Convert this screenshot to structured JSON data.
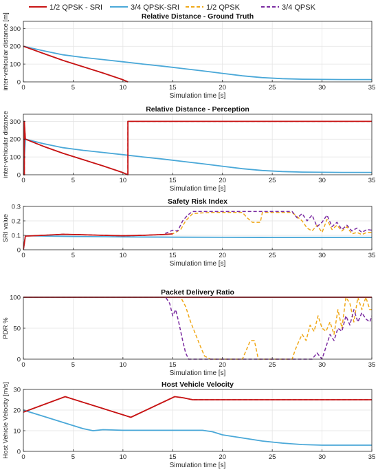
{
  "legend": [
    {
      "label": "1/2 QPSK - SRI",
      "color": "#c81414",
      "dash": "solid"
    },
    {
      "label": "3/4 QPSK-SRI",
      "color": "#4aa8d8",
      "dash": "solid"
    },
    {
      "label": "1/2 QPSK",
      "color": "#f0a818",
      "dash": "dashed"
    },
    {
      "label": "3/4 QPSK",
      "color": "#7a2aa0",
      "dash": "dashed"
    }
  ],
  "chart_data": [
    {
      "type": "line",
      "title": "Relative Distance - Ground Truth",
      "xlabel": "Simulation time [s]",
      "ylabel": "inter-vehicular distance [m]",
      "xlim": [
        0,
        35
      ],
      "ylim": [
        0,
        340
      ],
      "xticks": [
        0,
        5,
        10,
        15,
        20,
        25,
        30,
        35
      ],
      "yticks": [
        0,
        100,
        200,
        300
      ],
      "grid": true,
      "series": [
        {
          "name": "1/2 QPSK - SRI",
          "x": [
            0,
            2,
            4,
            6,
            8,
            10,
            10.5
          ],
          "y": [
            200,
            160,
            120,
            85,
            50,
            12,
            0
          ]
        },
        {
          "name": "3/4 QPSK-SRI",
          "x": [
            0,
            2,
            4,
            6,
            8,
            10,
            12,
            14,
            16,
            18,
            20,
            22,
            24,
            26,
            28,
            30,
            32,
            35
          ],
          "y": [
            200,
            175,
            152,
            137,
            125,
            113,
            100,
            88,
            75,
            62,
            48,
            34,
            24,
            18,
            15,
            14,
            13,
            13
          ]
        },
        {
          "name": "1/2 QPSK",
          "x": [
            0,
            2,
            4,
            6,
            8,
            10,
            10.5
          ],
          "y": [
            200,
            160,
            120,
            85,
            50,
            12,
            0
          ]
        },
        {
          "name": "3/4 QPSK",
          "x": [
            0,
            2,
            4,
            6,
            8,
            10,
            10.5
          ],
          "y": [
            200,
            160,
            120,
            85,
            50,
            12,
            0
          ]
        }
      ]
    },
    {
      "type": "line",
      "title": "Relative Distance - Perception",
      "xlabel": "Simulation time [s]",
      "ylabel": "inter-vehicular distance",
      "xlim": [
        0,
        35
      ],
      "ylim": [
        0,
        340
      ],
      "xticks": [
        0,
        5,
        10,
        15,
        20,
        25,
        30,
        35
      ],
      "yticks": [
        0,
        100,
        200,
        300
      ],
      "grid": true,
      "series": [
        {
          "name": "1/2 QPSK - SRI",
          "x": [
            0,
            0.1,
            0.1,
            0.2,
            2,
            4,
            6,
            8,
            10,
            10.5,
            10.5,
            35
          ],
          "y": [
            0,
            0,
            300,
            200,
            160,
            120,
            85,
            50,
            12,
            0,
            300,
            300
          ]
        },
        {
          "name": "3/4 QPSK-SRI",
          "x": [
            0,
            0.2,
            2,
            4,
            6,
            8,
            10,
            12,
            14,
            16,
            18,
            20,
            22,
            24,
            26,
            28,
            30,
            32,
            35
          ],
          "y": [
            0,
            200,
            175,
            152,
            137,
            125,
            113,
            100,
            88,
            75,
            62,
            48,
            34,
            24,
            18,
            15,
            14,
            13,
            13
          ]
        },
        {
          "name": "1/2 QPSK",
          "x": [
            0,
            0.1,
            0.1,
            0.2,
            2,
            4,
            6,
            8,
            10,
            10.5,
            10.5,
            35
          ],
          "y": [
            0,
            0,
            300,
            200,
            160,
            120,
            85,
            50,
            12,
            0,
            300,
            300
          ]
        },
        {
          "name": "3/4 QPSK",
          "x": [
            0,
            0.1,
            0.1,
            0.2,
            2,
            4,
            6,
            8,
            10,
            10.5,
            10.5,
            35
          ],
          "y": [
            0,
            0,
            300,
            200,
            160,
            120,
            85,
            50,
            12,
            0,
            300,
            300
          ]
        }
      ]
    },
    {
      "type": "line",
      "title": "Safety Risk Index",
      "xlabel": "Simulation time [s]",
      "ylabel": "SRI value",
      "xlim": [
        0,
        35
      ],
      "ylim": [
        0,
        0.3
      ],
      "xticks": [
        0,
        5,
        10,
        15,
        20,
        25,
        30,
        35
      ],
      "yticks": [
        0,
        0.1,
        0.2,
        0.3
      ],
      "grid": true,
      "series": [
        {
          "name": "1/2 QPSK - SRI",
          "x": [
            0,
            0.2,
            2,
            4,
            6,
            8,
            10,
            12,
            14,
            15
          ],
          "y": [
            0,
            0.095,
            0.1,
            0.107,
            0.104,
            0.1,
            0.097,
            0.1,
            0.105,
            0.11
          ]
        },
        {
          "name": "3/4 QPSK-SRI",
          "x": [
            0,
            0.2,
            5,
            10,
            15,
            20,
            25,
            30,
            35
          ],
          "y": [
            0,
            0.097,
            0.092,
            0.089,
            0.087,
            0.086,
            0.085,
            0.085,
            0.085
          ]
        },
        {
          "name": "1/2 QPSK",
          "x": [
            0,
            0.2,
            2,
            4,
            6,
            8,
            10,
            12,
            14,
            15,
            15.8,
            16.3,
            17,
            18,
            19,
            20,
            21,
            22,
            22.5,
            23,
            23.8,
            24,
            24.5,
            25,
            26,
            27,
            28,
            28.5,
            29,
            29.5,
            30,
            30.5,
            31,
            31.5,
            32,
            32.5,
            33,
            33.5,
            34,
            34.5,
            35
          ],
          "y": [
            0,
            0.095,
            0.1,
            0.107,
            0.104,
            0.1,
            0.097,
            0.1,
            0.105,
            0.11,
            0.14,
            0.2,
            0.25,
            0.255,
            0.258,
            0.258,
            0.258,
            0.258,
            0.22,
            0.19,
            0.19,
            0.258,
            0.258,
            0.258,
            0.258,
            0.258,
            0.2,
            0.15,
            0.13,
            0.17,
            0.12,
            0.21,
            0.14,
            0.17,
            0.13,
            0.16,
            0.11,
            0.12,
            0.105,
            0.12,
            0.12
          ]
        },
        {
          "name": "3/4 QPSK",
          "x": [
            0,
            0.2,
            2,
            4,
            6,
            8,
            10,
            12,
            14,
            14.5,
            15,
            15.5,
            16,
            16.5,
            17,
            18,
            20,
            22,
            24,
            26,
            27,
            27.5,
            28,
            28.5,
            29,
            29.5,
            30,
            30.5,
            31,
            31.5,
            32,
            32.5,
            33,
            33.5,
            34,
            34.5,
            35
          ],
          "y": [
            0,
            0.095,
            0.1,
            0.107,
            0.104,
            0.1,
            0.097,
            0.1,
            0.105,
            0.12,
            0.135,
            0.13,
            0.2,
            0.24,
            0.265,
            0.265,
            0.265,
            0.265,
            0.265,
            0.265,
            0.265,
            0.22,
            0.25,
            0.2,
            0.24,
            0.16,
            0.19,
            0.24,
            0.16,
            0.19,
            0.14,
            0.17,
            0.13,
            0.15,
            0.12,
            0.14,
            0.135
          ]
        }
      ]
    },
    {
      "type": "line",
      "title": "Packet Delivery Ratio",
      "xlabel": "Simulation time [s]",
      "ylabel": "PDR %",
      "xlim": [
        0,
        35
      ],
      "ylim": [
        0,
        100
      ],
      "xticks": [
        0,
        5,
        10,
        15,
        20,
        25,
        30,
        35
      ],
      "yticks": [
        0,
        50,
        100
      ],
      "grid": true,
      "series": [
        {
          "name": "1/2 QPSK - SRI",
          "x": [
            0,
            35
          ],
          "y": [
            100,
            100
          ]
        },
        {
          "name": "3/4 QPSK-SRI",
          "x": [
            0,
            35
          ],
          "y": [
            100,
            100
          ]
        },
        {
          "name": "1/2 QPSK",
          "x": [
            0,
            15,
            15.8,
            16.3,
            16.8,
            17.3,
            17.8,
            18.2,
            18.8,
            20,
            22,
            22.8,
            23.2,
            23.6,
            24,
            26,
            27,
            27.3,
            27.7,
            28,
            28.4,
            28.8,
            29.2,
            29.6,
            30,
            30.4,
            30.8,
            31.2,
            31.6,
            32,
            32.4,
            32.8,
            33.2,
            33.6,
            34,
            34.4,
            34.8,
            35
          ],
          "y": [
            100,
            100,
            100,
            85,
            60,
            40,
            20,
            5,
            0,
            0,
            0,
            30,
            30,
            0,
            0,
            0,
            0,
            15,
            30,
            40,
            30,
            55,
            45,
            70,
            50,
            45,
            60,
            40,
            80,
            50,
            100,
            90,
            60,
            100,
            80,
            100,
            80,
            80
          ]
        },
        {
          "name": "3/4 QPSK",
          "x": [
            0,
            14.3,
            14.7,
            15,
            15.3,
            15.6,
            16,
            16.3,
            16.6,
            17,
            20,
            24,
            26,
            28,
            29,
            29.5,
            30,
            30.4,
            30.8,
            31.2,
            31.6,
            32,
            32.4,
            32.8,
            33.2,
            33.6,
            34,
            34.4,
            34.8,
            35
          ],
          "y": [
            100,
            100,
            90,
            70,
            80,
            60,
            30,
            10,
            0,
            0,
            0,
            0,
            0,
            0,
            0,
            10,
            0,
            20,
            40,
            30,
            50,
            45,
            70,
            55,
            80,
            60,
            75,
            65,
            60,
            70
          ]
        }
      ]
    },
    {
      "type": "line",
      "title": "Host Vehicle Velocity",
      "xlabel": "Simulation time [s]",
      "ylabel": "Host Vehicle Velocity [m/s]",
      "xlim": [
        0,
        35
      ],
      "ylim": [
        0,
        30
      ],
      "xticks": [
        0,
        5,
        10,
        15,
        20,
        25,
        30,
        35
      ],
      "yticks": [
        0,
        10,
        20,
        30
      ],
      "grid": true,
      "series": [
        {
          "name": "1/2 QPSK - SRI",
          "x": [
            0,
            4.2,
            10.8,
            15.2,
            16,
            17,
            20,
            25,
            30,
            35
          ],
          "y": [
            19,
            26.5,
            16.5,
            26.5,
            26,
            25,
            25,
            25,
            25,
            25
          ]
        },
        {
          "name": "3/4 QPSK-SRI",
          "x": [
            0,
            2,
            4,
            6,
            7,
            8,
            10,
            12,
            14,
            16,
            18,
            19,
            20,
            22,
            24,
            26,
            28,
            30,
            32,
            35
          ],
          "y": [
            20,
            17,
            14,
            11,
            10,
            10.5,
            10.2,
            10.2,
            10.2,
            10.2,
            10.2,
            9.5,
            8,
            6.5,
            5,
            4,
            3.3,
            3,
            3,
            3
          ]
        },
        {
          "name": "1/2 QPSK",
          "x": [
            0,
            4.2,
            10.8,
            15.2,
            16,
            17,
            20,
            25,
            30,
            35
          ],
          "y": [
            19,
            26.5,
            16.5,
            26.5,
            26,
            25,
            25,
            25,
            25,
            25
          ]
        },
        {
          "name": "3/4 QPSK",
          "x": [
            0,
            4.2,
            10.8,
            15.2,
            16,
            17,
            20,
            25,
            30,
            35
          ],
          "y": [
            19,
            26.5,
            16.5,
            26.5,
            26,
            25,
            25,
            25,
            25,
            25
          ]
        }
      ]
    }
  ]
}
